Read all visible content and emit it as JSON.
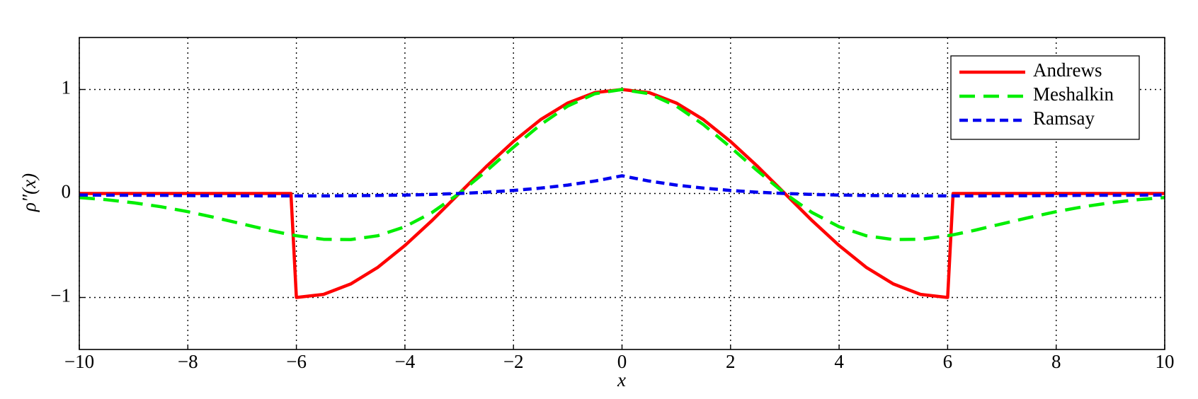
{
  "chart_data": {
    "type": "line",
    "x_label": "x",
    "y_label": "ρ″(x)",
    "x": [
      -10,
      -9.5,
      -9,
      -8.5,
      -8,
      -7.5,
      -7,
      -6.5,
      -6.1,
      -6,
      -5.5,
      -5,
      -4.5,
      -4,
      -3.5,
      -3,
      -2.5,
      -2,
      -1.5,
      -1,
      -0.5,
      0,
      0.5,
      1,
      1.5,
      2,
      2.5,
      3,
      3.5,
      4,
      4.5,
      5,
      5.5,
      6,
      6.1,
      6.5,
      7,
      7.5,
      8,
      8.5,
      9,
      9.5,
      10
    ],
    "series": [
      {
        "name": "Andrews",
        "color": "#ff0000",
        "linestyle": "solid",
        "values": [
          0,
          0,
          0,
          0,
          0,
          0,
          0,
          0,
          0,
          -1,
          -0.97,
          -0.87,
          -0.71,
          -0.5,
          -0.26,
          0,
          0.26,
          0.5,
          0.71,
          0.87,
          0.97,
          1,
          0.97,
          0.87,
          0.71,
          0.5,
          0.26,
          0,
          -0.26,
          -0.5,
          -0.71,
          -0.87,
          -0.97,
          -1,
          0,
          0,
          0,
          0,
          0,
          0,
          0,
          0,
          0
        ]
      },
      {
        "name": "Meshalkin",
        "color": "#00ee00",
        "linestyle": "dashed",
        "values": [
          -0.039,
          -0.06,
          -0.089,
          -0.127,
          -0.175,
          -0.231,
          -0.292,
          -0.354,
          -0.397,
          -0.406,
          -0.44,
          -0.443,
          -0.406,
          -0.32,
          -0.183,
          0,
          0.216,
          0.445,
          0.662,
          0.841,
          0.959,
          1,
          0.959,
          0.841,
          0.662,
          0.445,
          0.216,
          0,
          -0.183,
          -0.32,
          -0.406,
          -0.443,
          -0.44,
          -0.406,
          -0.397,
          -0.354,
          -0.292,
          -0.231,
          -0.175,
          -0.127,
          -0.089,
          -0.06,
          -0.039
        ]
      },
      {
        "name": "Ramsay",
        "color": "#0000ee",
        "linestyle": "short-dashed",
        "values": [
          -0.014,
          -0.016,
          -0.017,
          -0.018,
          -0.02,
          -0.021,
          -0.022,
          -0.023,
          -0.023,
          -0.023,
          -0.023,
          -0.021,
          -0.019,
          -0.015,
          -0.009,
          0,
          0.012,
          0.029,
          0.052,
          0.081,
          0.12,
          0.17,
          0.12,
          0.081,
          0.052,
          0.029,
          0.012,
          0,
          -0.009,
          -0.015,
          -0.019,
          -0.021,
          -0.023,
          -0.023,
          -0.023,
          -0.023,
          -0.022,
          -0.021,
          -0.02,
          -0.018,
          -0.017,
          -0.016,
          -0.014
        ]
      }
    ],
    "xlim": [
      -10,
      10
    ],
    "xticks": [
      {
        "value": -10,
        "label": "−10"
      },
      {
        "value": -8,
        "label": "−8"
      },
      {
        "value": -6,
        "label": "−6"
      },
      {
        "value": -4,
        "label": "−4"
      },
      {
        "value": -2,
        "label": "−2"
      },
      0,
      2,
      4,
      6,
      8,
      10
    ],
    "ylim": [
      -1.5,
      1.5
    ],
    "yticks": [
      {
        "value": -1,
        "label": "−1"
      },
      0,
      1
    ],
    "grid": true,
    "legend": "upper-right"
  }
}
